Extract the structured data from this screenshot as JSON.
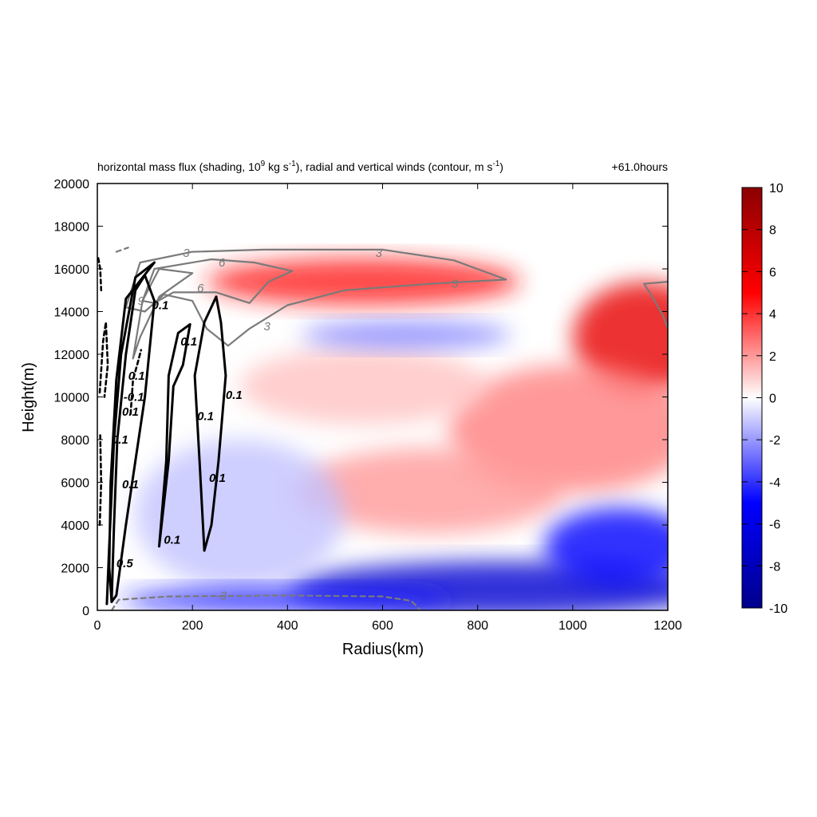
{
  "chart_data": {
    "type": "heatmap",
    "title_parts": {
      "pre": "horizontal mass flux (shading, 10",
      "sup1": "9",
      "mid1": " kg s",
      "sup2": "-1",
      "mid2": "), radial and vertical winds (contour, m s",
      "sup3": "-1",
      "post": ")"
    },
    "time_label": "+61.0hours",
    "xlabel": "Radius(km)",
    "ylabel": "Height(m)",
    "xlim": [
      0,
      1200
    ],
    "ylim": [
      0,
      20000
    ],
    "xticks": [
      0,
      200,
      400,
      600,
      800,
      1000,
      1200
    ],
    "yticks": [
      0,
      2000,
      4000,
      6000,
      8000,
      10000,
      12000,
      14000,
      16000,
      18000,
      20000
    ],
    "colorbar": {
      "range": [
        -10,
        10
      ],
      "ticks": [
        10,
        8,
        6,
        4,
        2,
        0,
        -2,
        -4,
        -6,
        -8,
        -10
      ],
      "colors": [
        "#00008b",
        "#0000ff",
        "#ffffff",
        "#ff0000",
        "#8b0000"
      ]
    },
    "shading_features": [
      {
        "kind": "ellipse",
        "cx": 560,
        "cy": 15400,
        "rx": 330,
        "ry": 1100,
        "value": 4.5
      },
      {
        "kind": "ellipse",
        "cx": 1150,
        "cy": 12800,
        "rx": 150,
        "ry": 2600,
        "value": 6.0
      },
      {
        "kind": "ellipse",
        "cx": 1000,
        "cy": 8500,
        "rx": 260,
        "ry": 3000,
        "value": 2.5
      },
      {
        "kind": "ellipse",
        "cx": 700,
        "cy": 5600,
        "rx": 280,
        "ry": 2000,
        "value": 2.0
      },
      {
        "kind": "ellipse",
        "cx": 560,
        "cy": 10500,
        "rx": 260,
        "ry": 1800,
        "value": 1.2
      },
      {
        "kind": "ellipse",
        "cx": 650,
        "cy": 12900,
        "rx": 220,
        "ry": 650,
        "value": -2.5
      },
      {
        "kind": "ellipse",
        "cx": 850,
        "cy": 1000,
        "rx": 450,
        "ry": 1300,
        "value": -7.0
      },
      {
        "kind": "ellipse",
        "cx": 300,
        "cy": 4500,
        "rx": 220,
        "ry": 3500,
        "value": -1.2
      },
      {
        "kind": "ellipse",
        "cx": 400,
        "cy": 500,
        "rx": 350,
        "ry": 600,
        "value": -4.5
      },
      {
        "kind": "ellipse",
        "cx": 1100,
        "cy": 3000,
        "rx": 160,
        "ry": 1800,
        "value": -5.0
      }
    ],
    "series": [
      {
        "name": "radial wind 3",
        "style": "solid-grey",
        "labels": [
          {
            "text": "3",
            "x": 180,
            "y": 16750
          },
          {
            "text": "3",
            "x": 585,
            "y": 16750
          },
          {
            "text": "3",
            "x": 745,
            "y": 15300
          },
          {
            "text": "3",
            "x": 350,
            "y": 13300
          }
        ],
        "points": [
          [
            60,
            14200
          ],
          [
            90,
            16300
          ],
          [
            200,
            16800
          ],
          [
            350,
            16900
          ],
          [
            600,
            16900
          ],
          [
            750,
            16400
          ],
          [
            860,
            15500
          ],
          [
            700,
            15300
          ],
          [
            520,
            15000
          ],
          [
            400,
            14300
          ],
          [
            320,
            13200
          ],
          [
            275,
            12400
          ],
          [
            230,
            13200
          ],
          [
            200,
            14500
          ],
          [
            140,
            14800
          ],
          [
            100,
            14000
          ],
          [
            60,
            14200
          ]
        ]
      },
      {
        "name": "radial wind 3 right",
        "style": "solid-grey",
        "labels": [],
        "points": [
          [
            1200,
            15400
          ],
          [
            1150,
            15300
          ],
          [
            1165,
            14800
          ],
          [
            1190,
            13800
          ],
          [
            1200,
            13200
          ]
        ]
      },
      {
        "name": "radial wind 6",
        "style": "solid-grey",
        "labels": [
          {
            "text": "6",
            "x": 255,
            "y": 16300
          },
          {
            "text": "6",
            "x": 210,
            "y": 15100
          }
        ],
        "points": [
          [
            95,
            14500
          ],
          [
            120,
            16000
          ],
          [
            240,
            16450
          ],
          [
            330,
            16300
          ],
          [
            410,
            15900
          ],
          [
            360,
            15400
          ],
          [
            320,
            14400
          ],
          [
            250,
            14900
          ],
          [
            160,
            14900
          ],
          [
            120,
            14400
          ],
          [
            95,
            14500
          ]
        ]
      },
      {
        "name": "radial wind 9",
        "style": "solid-grey",
        "labels": [
          {
            "text": "9",
            "x": 85,
            "y": 14500
          }
        ],
        "points": [
          [
            75,
            11800
          ],
          [
            95,
            14500
          ],
          [
            130,
            16000
          ],
          [
            200,
            15800
          ],
          [
            130,
            14700
          ],
          [
            90,
            12800
          ],
          [
            75,
            11800
          ]
        ]
      },
      {
        "name": "radial wind -3",
        "style": "dashed-grey",
        "labels": [
          {
            "text": "-3",
            "x": 250,
            "y": 700
          }
        ],
        "points": [
          [
            30,
            0
          ],
          [
            45,
            500
          ],
          [
            150,
            650
          ],
          [
            400,
            700
          ],
          [
            600,
            650
          ],
          [
            660,
            450
          ],
          [
            680,
            0
          ]
        ]
      },
      {
        "name": "radial wind -3 small",
        "style": "dashed-grey",
        "labels": [],
        "points": [
          [
            40,
            16800
          ],
          [
            65,
            17000
          ]
        ]
      },
      {
        "name": "vertical wind 0.1 eyewall",
        "style": "solid-black",
        "labels": [
          {
            "text": "0.1",
            "x": 52,
            "y": 9300
          },
          {
            "text": "0.1",
            "x": 52,
            "y": 5900
          },
          {
            "text": "0.1",
            "x": 115,
            "y": 14300
          },
          {
            "text": "0.5",
            "x": 40,
            "y": 2200
          }
        ],
        "points": [
          [
            30,
            400
          ],
          [
            40,
            700
          ],
          [
            60,
            4000
          ],
          [
            100,
            10000
          ],
          [
            120,
            14500
          ],
          [
            100,
            15700
          ],
          [
            80,
            15000
          ],
          [
            60,
            12000
          ],
          [
            42,
            8000
          ],
          [
            35,
            4000
          ],
          [
            30,
            400
          ]
        ]
      },
      {
        "name": "vertical wind 0.1 outer",
        "style": "solid-black",
        "labels": [
          {
            "text": "0.1",
            "x": 30,
            "y": 8000
          },
          {
            "text": "0.1",
            "x": 65,
            "y": 11000
          }
        ],
        "points": [
          [
            20,
            300
          ],
          [
            25,
            3000
          ],
          [
            35,
            8000
          ],
          [
            50,
            12000
          ],
          [
            80,
            15600
          ],
          [
            120,
            16300
          ],
          [
            60,
            14600
          ],
          [
            40,
            10800
          ],
          [
            28,
            6000
          ],
          [
            25,
            2000
          ],
          [
            30,
            400
          ]
        ]
      },
      {
        "name": "vertical wind 0.1 band 1",
        "style": "solid-black",
        "labels": [
          {
            "text": "0.1",
            "x": 140,
            "y": 3300
          },
          {
            "text": "0.1",
            "x": 175,
            "y": 12600
          }
        ],
        "points": [
          [
            130,
            3000
          ],
          [
            145,
            7000
          ],
          [
            150,
            11000
          ],
          [
            170,
            13000
          ],
          [
            195,
            13400
          ],
          [
            180,
            11500
          ],
          [
            160,
            10500
          ],
          [
            150,
            7000
          ],
          [
            130,
            3000
          ]
        ]
      },
      {
        "name": "vertical wind 0.1 band 2",
        "style": "solid-black",
        "labels": [
          {
            "text": "0.1",
            "x": 210,
            "y": 9100
          },
          {
            "text": "0.1",
            "x": 270,
            "y": 10100
          },
          {
            "text": "0.1",
            "x": 235,
            "y": 6200
          }
        ],
        "points": [
          [
            225,
            2800
          ],
          [
            215,
            7000
          ],
          [
            205,
            11000
          ],
          [
            225,
            13500
          ],
          [
            250,
            14700
          ],
          [
            260,
            13500
          ],
          [
            270,
            11000
          ],
          [
            255,
            7000
          ],
          [
            240,
            4000
          ],
          [
            225,
            2800
          ]
        ]
      },
      {
        "name": "vertical wind -0.1 inner",
        "style": "dashed-black",
        "labels": [
          {
            "text": "-0.1",
            "x": 55,
            "y": 10000
          }
        ],
        "points": [
          [
            5,
            10200
          ],
          [
            12,
            12600
          ],
          [
            18,
            13500
          ],
          [
            22,
            11500
          ],
          [
            15,
            10000
          ]
        ]
      },
      {
        "name": "vertical wind -0.1 band",
        "style": "dashed-black",
        "labels": [],
        "points": [
          [
            70,
            9200
          ],
          [
            75,
            10800
          ],
          [
            85,
            11600
          ],
          [
            92,
            12200
          ]
        ]
      },
      {
        "name": "vertical wind -0.1 edge",
        "style": "dashed-black",
        "labels": [],
        "points": [
          [
            5,
            4000
          ],
          [
            8,
            6000
          ],
          [
            6,
            8200
          ]
        ]
      },
      {
        "name": "vertical wind -0.1 top",
        "style": "dashed-black",
        "labels": [],
        "points": [
          [
            2,
            16500
          ],
          [
            6,
            16000
          ],
          [
            8,
            15000
          ]
        ]
      }
    ]
  }
}
